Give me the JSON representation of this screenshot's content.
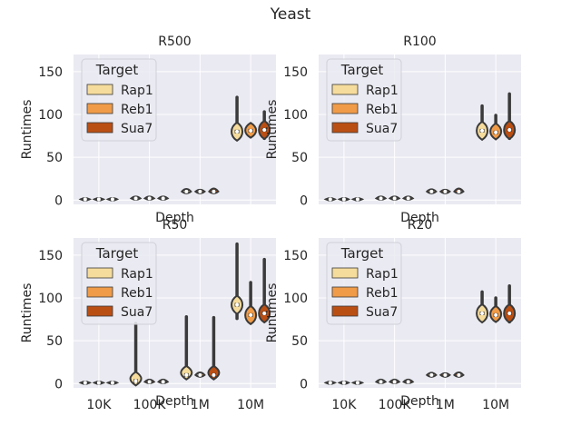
{
  "figure": {
    "title": "Yeast"
  },
  "colors": {
    "Rap1": "#f6dc9c",
    "Reb1": "#f09b48",
    "Sua7": "#ba4f14",
    "panel_bg": "#eaeaf2",
    "grid": "#ffffff",
    "violin_edge": "#3a3a3a"
  },
  "chart_data": [
    {
      "type": "violin",
      "title": "R500",
      "xlabel": "Depth",
      "ylabel": "Runtimes",
      "categories": [
        "10K",
        "100K",
        "1M",
        "10M"
      ],
      "yticks": [
        0,
        50,
        100,
        150
      ],
      "ylim": [
        -5,
        170
      ],
      "grid": true,
      "legend": {
        "title": "Target",
        "position": "upper-left",
        "entries": [
          "Rap1",
          "Reb1",
          "Sua7"
        ]
      },
      "series": [
        {
          "name": "Rap1",
          "values": [
            {
              "median": 1,
              "min": 0.5,
              "max": 1.5
            },
            {
              "median": 2,
              "min": 1,
              "max": 4
            },
            {
              "median": 10,
              "min": 8,
              "max": 14
            },
            {
              "median": 80,
              "min": 72,
              "max": 120
            }
          ]
        },
        {
          "name": "Reb1",
          "values": [
            {
              "median": 1,
              "min": 0.5,
              "max": 1.5
            },
            {
              "median": 2,
              "min": 1,
              "max": 4
            },
            {
              "median": 10,
              "min": 8,
              "max": 12
            },
            {
              "median": 81,
              "min": 76,
              "max": 88
            }
          ]
        },
        {
          "name": "Sua7",
          "values": [
            {
              "median": 1,
              "min": 0.5,
              "max": 1.5
            },
            {
              "median": 2,
              "min": 1,
              "max": 4
            },
            {
              "median": 10,
              "min": 8,
              "max": 15
            },
            {
              "median": 82,
              "min": 72,
              "max": 103
            }
          ]
        }
      ]
    },
    {
      "type": "violin",
      "title": "R100",
      "xlabel": "Depth",
      "ylabel": "Runtimes",
      "categories": [
        "10K",
        "100K",
        "1M",
        "10M"
      ],
      "yticks": [
        0,
        50,
        100,
        150
      ],
      "ylim": [
        -5,
        170
      ],
      "grid": true,
      "legend": {
        "title": "Target",
        "position": "upper-left",
        "entries": [
          "Rap1",
          "Reb1",
          "Sua7"
        ]
      },
      "series": [
        {
          "name": "Rap1",
          "values": [
            {
              "median": 1,
              "min": 0.5,
              "max": 1.5
            },
            {
              "median": 2,
              "min": 1,
              "max": 4
            },
            {
              "median": 10,
              "min": 8,
              "max": 13
            },
            {
              "median": 81,
              "min": 73,
              "max": 110
            }
          ]
        },
        {
          "name": "Reb1",
          "values": [
            {
              "median": 1,
              "min": 0.5,
              "max": 1.5
            },
            {
              "median": 2,
              "min": 1,
              "max": 4
            },
            {
              "median": 10,
              "min": 8,
              "max": 12
            },
            {
              "median": 79,
              "min": 74,
              "max": 99
            }
          ]
        },
        {
          "name": "Sua7",
          "values": [
            {
              "median": 1,
              "min": 0.5,
              "max": 1.5
            },
            {
              "median": 2,
              "min": 1,
              "max": 4
            },
            {
              "median": 10,
              "min": 8,
              "max": 15
            },
            {
              "median": 82,
              "min": 72,
              "max": 124
            }
          ]
        }
      ]
    },
    {
      "type": "violin",
      "title": "R50",
      "xlabel": "Depth",
      "ylabel": "Runtimes",
      "categories": [
        "10K",
        "100K",
        "1M",
        "10M"
      ],
      "yticks": [
        0,
        50,
        100,
        150
      ],
      "ylim": [
        -5,
        170
      ],
      "grid": true,
      "legend": {
        "title": "Target",
        "position": "upper-left",
        "entries": [
          "Rap1",
          "Reb1",
          "Sua7"
        ]
      },
      "series": [
        {
          "name": "Rap1",
          "values": [
            {
              "median": 1,
              "min": 0.5,
              "max": 1.5
            },
            {
              "median": 3,
              "min": 1,
              "max": 70
            },
            {
              "median": 10,
              "min": 8,
              "max": 78
            },
            {
              "median": 92,
              "min": 76,
              "max": 163
            }
          ]
        },
        {
          "name": "Reb1",
          "values": [
            {
              "median": 1,
              "min": 0.5,
              "max": 1.5
            },
            {
              "median": 2,
              "min": 1,
              "max": 5
            },
            {
              "median": 10,
              "min": 8,
              "max": 14
            },
            {
              "median": 80,
              "min": 72,
              "max": 118
            }
          ]
        },
        {
          "name": "Sua7",
          "values": [
            {
              "median": 1,
              "min": 0.5,
              "max": 1.5
            },
            {
              "median": 2,
              "min": 1,
              "max": 5
            },
            {
              "median": 10,
              "min": 8,
              "max": 77
            },
            {
              "median": 82,
              "min": 74,
              "max": 145
            }
          ]
        }
      ]
    },
    {
      "type": "violin",
      "title": "R20",
      "xlabel": "Depth",
      "ylabel": "Runtimes",
      "categories": [
        "10K",
        "100K",
        "1M",
        "10M"
      ],
      "yticks": [
        0,
        50,
        100,
        150
      ],
      "ylim": [
        -5,
        170
      ],
      "grid": true,
      "legend": {
        "title": "Target",
        "position": "upper-left",
        "entries": [
          "Rap1",
          "Reb1",
          "Sua7"
        ]
      },
      "series": [
        {
          "name": "Rap1",
          "values": [
            {
              "median": 1,
              "min": 0.5,
              "max": 1.5
            },
            {
              "median": 2,
              "min": 1,
              "max": 5
            },
            {
              "median": 10,
              "min": 8,
              "max": 13
            },
            {
              "median": 82,
              "min": 74,
              "max": 107
            }
          ]
        },
        {
          "name": "Reb1",
          "values": [
            {
              "median": 1,
              "min": 0.5,
              "max": 1.5
            },
            {
              "median": 2,
              "min": 1,
              "max": 5
            },
            {
              "median": 10,
              "min": 8,
              "max": 12
            },
            {
              "median": 80,
              "min": 75,
              "max": 100
            }
          ]
        },
        {
          "name": "Sua7",
          "values": [
            {
              "median": 1,
              "min": 0.5,
              "max": 1.5
            },
            {
              "median": 2,
              "min": 1,
              "max": 5
            },
            {
              "median": 10,
              "min": 8,
              "max": 14
            },
            {
              "median": 82,
              "min": 72,
              "max": 114
            }
          ]
        }
      ]
    }
  ]
}
